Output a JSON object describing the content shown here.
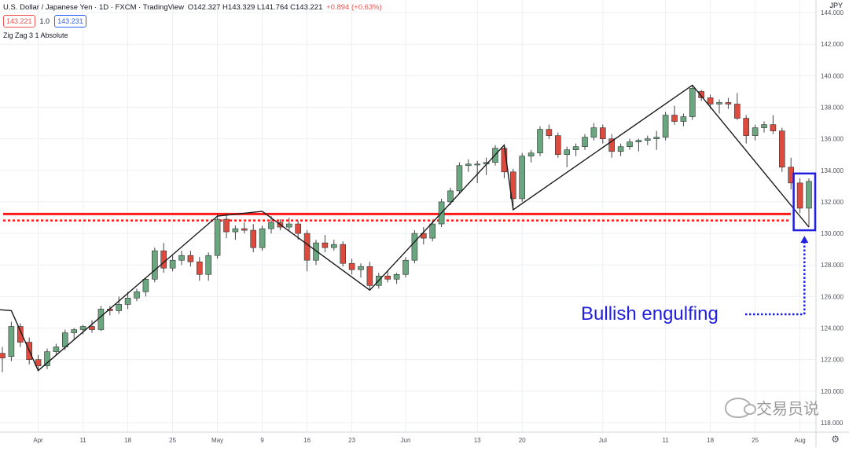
{
  "header": {
    "symbol_title": "U.S. Dollar / Japanese Yen · 1D · FXCM · TradingView",
    "ohlc": "O142.327 H143.329 L141.764 C143.221",
    "change": "+0.894 (+0.63%)",
    "bid_price": "143.221",
    "spread": "1.0",
    "ask_price": "143.231",
    "indicator": "Zig Zag 3 1 Absolute",
    "currency": "JPY"
  },
  "annotation": {
    "label": "Bullish engulfing"
  },
  "watermark": {
    "text": "交易员说"
  },
  "icons": {
    "settings": "gear-icon"
  },
  "colors": {
    "up_candle": "#6aa67f",
    "down_candle": "#dd4a3e",
    "zigzag": "#1a1a1a",
    "resistance_line": "#ff1a1a",
    "annotation": "#1f1fdd",
    "grid": "#eeeff2"
  },
  "chart_data": {
    "type": "candlestick",
    "title": "U.S. Dollar / Japanese Yen · 1D · FXCM · TradingView",
    "y_axis": {
      "ticks": [
        "144.000",
        "142.000",
        "140.000",
        "138.000",
        "136.000",
        "134.000",
        "132.000",
        "130.000",
        "128.000",
        "126.000",
        "124.000",
        "122.000",
        "120.000",
        "118.000"
      ],
      "range": [
        117.4,
        144.8
      ]
    },
    "x_axis": {
      "ticks": [
        {
          "label": "Apr",
          "day": 4
        },
        {
          "label": "11",
          "day": 9
        },
        {
          "label": "18",
          "day": 14
        },
        {
          "label": "25",
          "day": 19
        },
        {
          "label": "May",
          "day": 24
        },
        {
          "label": "9",
          "day": 29
        },
        {
          "label": "16",
          "day": 34
        },
        {
          "label": "23",
          "day": 39
        },
        {
          "label": "Jun",
          "day": 45
        },
        {
          "label": "13",
          "day": 53
        },
        {
          "label": "20",
          "day": 58
        },
        {
          "label": "Jul",
          "day": 67
        },
        {
          "label": "11",
          "day": 74
        },
        {
          "label": "18",
          "day": 79
        },
        {
          "label": "25",
          "day": 84
        },
        {
          "label": "Aug",
          "day": 89
        }
      ]
    },
    "candles": [
      {
        "o": 122.4,
        "h": 122.8,
        "l": 121.2,
        "c": 122.1
      },
      {
        "o": 122.2,
        "h": 124.4,
        "l": 121.9,
        "c": 124.1
      },
      {
        "o": 124.1,
        "h": 124.3,
        "l": 122.8,
        "c": 123.1
      },
      {
        "o": 123.1,
        "h": 123.4,
        "l": 121.7,
        "c": 122.0
      },
      {
        "o": 122.0,
        "h": 122.3,
        "l": 121.3,
        "c": 121.6
      },
      {
        "o": 121.6,
        "h": 122.7,
        "l": 121.4,
        "c": 122.5
      },
      {
        "o": 122.5,
        "h": 123.0,
        "l": 122.3,
        "c": 122.8
      },
      {
        "o": 122.8,
        "h": 123.9,
        "l": 122.6,
        "c": 123.7
      },
      {
        "o": 123.7,
        "h": 124.0,
        "l": 123.3,
        "c": 123.9
      },
      {
        "o": 123.9,
        "h": 124.2,
        "l": 123.6,
        "c": 124.1
      },
      {
        "o": 124.1,
        "h": 124.5,
        "l": 123.7,
        "c": 123.9
      },
      {
        "o": 123.9,
        "h": 125.4,
        "l": 123.8,
        "c": 125.2
      },
      {
        "o": 125.2,
        "h": 125.4,
        "l": 124.8,
        "c": 125.1
      },
      {
        "o": 125.1,
        "h": 126.0,
        "l": 124.9,
        "c": 125.5
      },
      {
        "o": 125.5,
        "h": 126.3,
        "l": 125.2,
        "c": 125.9
      },
      {
        "o": 125.9,
        "h": 126.5,
        "l": 125.7,
        "c": 126.3
      },
      {
        "o": 126.3,
        "h": 127.2,
        "l": 126.0,
        "c": 127.1
      },
      {
        "o": 127.1,
        "h": 129.1,
        "l": 126.9,
        "c": 128.9
      },
      {
        "o": 128.9,
        "h": 129.4,
        "l": 127.5,
        "c": 127.8
      },
      {
        "o": 127.8,
        "h": 128.6,
        "l": 127.6,
        "c": 128.3
      },
      {
        "o": 128.3,
        "h": 128.9,
        "l": 128.0,
        "c": 128.6
      },
      {
        "o": 128.6,
        "h": 128.9,
        "l": 127.9,
        "c": 128.2
      },
      {
        "o": 128.2,
        "h": 128.5,
        "l": 127.0,
        "c": 127.4
      },
      {
        "o": 127.4,
        "h": 128.8,
        "l": 127.0,
        "c": 128.6
      },
      {
        "o": 128.6,
        "h": 131.2,
        "l": 128.4,
        "c": 130.9
      },
      {
        "o": 130.9,
        "h": 131.3,
        "l": 129.7,
        "c": 130.1
      },
      {
        "o": 130.1,
        "h": 130.5,
        "l": 129.6,
        "c": 130.3
      },
      {
        "o": 130.3,
        "h": 130.7,
        "l": 130.0,
        "c": 130.2
      },
      {
        "o": 130.2,
        "h": 130.6,
        "l": 128.8,
        "c": 129.1
      },
      {
        "o": 129.1,
        "h": 130.5,
        "l": 128.9,
        "c": 130.3
      },
      {
        "o": 130.3,
        "h": 131.1,
        "l": 130.0,
        "c": 130.7
      },
      {
        "o": 130.7,
        "h": 130.9,
        "l": 130.2,
        "c": 130.4
      },
      {
        "o": 130.4,
        "h": 131.0,
        "l": 130.2,
        "c": 130.6
      },
      {
        "o": 130.6,
        "h": 130.8,
        "l": 129.6,
        "c": 130.0
      },
      {
        "o": 130.0,
        "h": 130.2,
        "l": 127.6,
        "c": 128.3
      },
      {
        "o": 128.3,
        "h": 129.6,
        "l": 128.0,
        "c": 129.4
      },
      {
        "o": 129.4,
        "h": 129.9,
        "l": 128.8,
        "c": 129.1
      },
      {
        "o": 129.1,
        "h": 129.6,
        "l": 128.9,
        "c": 129.3
      },
      {
        "o": 129.3,
        "h": 129.5,
        "l": 127.9,
        "c": 128.1
      },
      {
        "o": 128.1,
        "h": 128.4,
        "l": 127.4,
        "c": 127.7
      },
      {
        "o": 127.7,
        "h": 128.1,
        "l": 127.2,
        "c": 127.9
      },
      {
        "o": 127.9,
        "h": 128.2,
        "l": 126.4,
        "c": 126.7
      },
      {
        "o": 126.7,
        "h": 127.5,
        "l": 126.5,
        "c": 127.3
      },
      {
        "o": 127.3,
        "h": 127.6,
        "l": 126.9,
        "c": 127.1
      },
      {
        "o": 127.1,
        "h": 127.5,
        "l": 126.8,
        "c": 127.4
      },
      {
        "o": 127.4,
        "h": 128.5,
        "l": 127.2,
        "c": 128.3
      },
      {
        "o": 128.3,
        "h": 130.2,
        "l": 128.1,
        "c": 130.0
      },
      {
        "o": 130.0,
        "h": 130.4,
        "l": 129.3,
        "c": 129.7
      },
      {
        "o": 129.7,
        "h": 130.8,
        "l": 129.5,
        "c": 130.6
      },
      {
        "o": 130.6,
        "h": 132.2,
        "l": 130.4,
        "c": 132.0
      },
      {
        "o": 132.0,
        "h": 132.9,
        "l": 131.8,
        "c": 132.7
      },
      {
        "o": 132.7,
        "h": 134.5,
        "l": 132.5,
        "c": 134.3
      },
      {
        "o": 134.3,
        "h": 134.7,
        "l": 133.9,
        "c": 134.4
      },
      {
        "o": 134.4,
        "h": 134.6,
        "l": 133.2,
        "c": 134.4
      },
      {
        "o": 134.4,
        "h": 134.8,
        "l": 133.7,
        "c": 134.5
      },
      {
        "o": 134.5,
        "h": 135.6,
        "l": 134.3,
        "c": 135.4
      },
      {
        "o": 135.4,
        "h": 135.6,
        "l": 133.5,
        "c": 133.9
      },
      {
        "o": 133.9,
        "h": 134.1,
        "l": 131.5,
        "c": 132.2
      },
      {
        "o": 132.2,
        "h": 135.1,
        "l": 132.0,
        "c": 134.9
      },
      {
        "o": 134.9,
        "h": 135.3,
        "l": 134.5,
        "c": 135.1
      },
      {
        "o": 135.1,
        "h": 136.8,
        "l": 134.9,
        "c": 136.6
      },
      {
        "o": 136.6,
        "h": 136.9,
        "l": 136.0,
        "c": 136.2
      },
      {
        "o": 136.2,
        "h": 136.4,
        "l": 134.8,
        "c": 135.0
      },
      {
        "o": 135.0,
        "h": 135.5,
        "l": 134.2,
        "c": 135.3
      },
      {
        "o": 135.3,
        "h": 135.7,
        "l": 134.9,
        "c": 135.5
      },
      {
        "o": 135.5,
        "h": 136.3,
        "l": 135.3,
        "c": 136.1
      },
      {
        "o": 136.1,
        "h": 137.0,
        "l": 135.9,
        "c": 136.7
      },
      {
        "o": 136.7,
        "h": 136.9,
        "l": 135.7,
        "c": 136.0
      },
      {
        "o": 136.0,
        "h": 136.3,
        "l": 134.8,
        "c": 135.2
      },
      {
        "o": 135.2,
        "h": 135.7,
        "l": 134.9,
        "c": 135.5
      },
      {
        "o": 135.5,
        "h": 136.0,
        "l": 135.3,
        "c": 135.8
      },
      {
        "o": 135.8,
        "h": 136.0,
        "l": 135.2,
        "c": 135.9
      },
      {
        "o": 135.9,
        "h": 136.2,
        "l": 135.6,
        "c": 136.0
      },
      {
        "o": 136.0,
        "h": 136.5,
        "l": 135.3,
        "c": 136.1
      },
      {
        "o": 136.1,
        "h": 137.7,
        "l": 135.9,
        "c": 137.5
      },
      {
        "o": 137.5,
        "h": 138.1,
        "l": 136.9,
        "c": 137.1
      },
      {
        "o": 137.1,
        "h": 137.6,
        "l": 136.8,
        "c": 137.4
      },
      {
        "o": 137.4,
        "h": 139.4,
        "l": 137.2,
        "c": 139.2
      },
      {
        "o": 139.0,
        "h": 139.1,
        "l": 138.4,
        "c": 138.6
      },
      {
        "o": 138.6,
        "h": 138.8,
        "l": 137.9,
        "c": 138.2
      },
      {
        "o": 138.2,
        "h": 138.5,
        "l": 137.6,
        "c": 138.3
      },
      {
        "o": 138.3,
        "h": 138.6,
        "l": 137.9,
        "c": 138.2
      },
      {
        "o": 138.2,
        "h": 138.9,
        "l": 137.2,
        "c": 137.3
      },
      {
        "o": 137.3,
        "h": 137.5,
        "l": 135.7,
        "c": 136.2
      },
      {
        "o": 136.2,
        "h": 136.9,
        "l": 135.9,
        "c": 136.7
      },
      {
        "o": 136.7,
        "h": 137.1,
        "l": 136.4,
        "c": 136.9
      },
      {
        "o": 136.9,
        "h": 137.5,
        "l": 136.3,
        "c": 136.5
      },
      {
        "o": 136.5,
        "h": 136.7,
        "l": 133.9,
        "c": 134.2
      },
      {
        "o": 134.2,
        "h": 134.8,
        "l": 132.8,
        "c": 133.2
      },
      {
        "o": 133.2,
        "h": 133.5,
        "l": 131.3,
        "c": 131.6
      },
      {
        "o": 131.6,
        "h": 133.5,
        "l": 130.4,
        "c": 133.3
      }
    ],
    "zigzag": [
      {
        "index": -1,
        "price": 125.2
      },
      {
        "index": 1,
        "price": 125.1
      },
      {
        "index": 4,
        "price": 121.3
      },
      {
        "index": 24,
        "price": 131.1
      },
      {
        "index": 29,
        "price": 131.4
      },
      {
        "index": 41,
        "price": 126.4
      },
      {
        "index": 56,
        "price": 135.6
      },
      {
        "index": 57,
        "price": 131.5
      },
      {
        "index": 77,
        "price": 139.4
      },
      {
        "index": 90,
        "price": 130.4
      }
    ],
    "horizontal_lines": [
      {
        "price": 131.23,
        "style": "solid"
      },
      {
        "price": 130.82,
        "style": "dotted"
      }
    ],
    "highlight_box": {
      "from_index": 89,
      "to_index": 90,
      "price_low": 130.2,
      "price_high": 133.8
    },
    "legend": "none",
    "grid": true
  }
}
